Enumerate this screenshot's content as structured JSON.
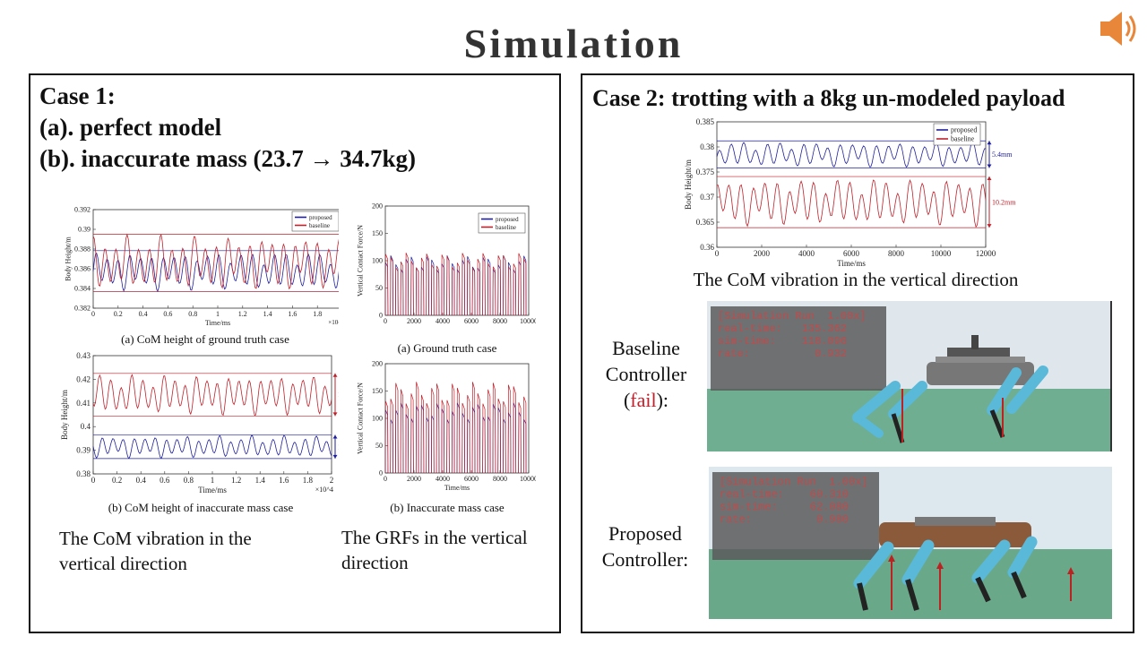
{
  "title": "Simulation",
  "left_panel": {
    "heading_lines": [
      "Case 1:",
      "(a). perfect model",
      "(b). inaccurate mass (23.7 → 34.7kg)"
    ],
    "captions": {
      "com_gt": "(a) CoM height of ground truth case",
      "grf_gt": "(a) Ground truth case",
      "com_mass": "(b) CoM height of inaccurate mass case",
      "grf_mass": "(b) Inaccurate mass case"
    },
    "text_com": [
      "The CoM vibration in the",
      "vertical direction"
    ],
    "text_grf": [
      "The GRFs in the vertical",
      "direction"
    ]
  },
  "right_panel": {
    "heading": "Case 2: trotting with a 8kg un-modeled payload",
    "caption": "The CoM vibration in the vertical direction",
    "baseline_label": [
      "Baseline",
      "Controller",
      "(",
      "fail",
      "):"
    ],
    "proposed_label": [
      "Proposed",
      "Controller:"
    ],
    "sim_baseline": {
      "hud": "[Simulation Run  1.00x]\nreal-time:   135.362\nsim-time:    118.096\nrate:          0.932"
    },
    "sim_proposed": {
      "hud": "[Simulation Run  1.00x]\nreal-time:    60.310\nsim-time:     62.080\nrate:          0.980"
    }
  },
  "colors": {
    "proposed": "#1f1f9e",
    "baseline": "#c0202a",
    "ground": "#6aa88a",
    "sky": "#dde7ee",
    "robot_leg": "#5ab8d8"
  },
  "chart_data": [
    {
      "id": "com_gt",
      "type": "line",
      "xlabel": "Time/ms",
      "ylabel": "Body Height/m",
      "x_exponent": "×10^4",
      "xlim": [
        0,
        2
      ],
      "ylim": [
        0.381,
        0.393
      ],
      "xticks": [
        "0",
        "0.2",
        "0.4",
        "0.6",
        "0.8",
        "1",
        "1.2",
        "1.4",
        "1.6",
        "1.8",
        "2"
      ],
      "yticks": [
        "0.382",
        "0.384",
        "0.386",
        "0.388",
        "0.39",
        "0.392"
      ],
      "series": [
        {
          "name": "proposed",
          "center": 0.3855,
          "amp": 0.0025
        },
        {
          "name": "baseline",
          "center": 0.3865,
          "amp": 0.0035
        }
      ],
      "annotations": [
        "8.7mm",
        "6.9mm"
      ]
    },
    {
      "id": "grf_gt",
      "type": "line",
      "xlabel": "",
      "ylabel": "Vertical Contact Force/N",
      "xlim": [
        0,
        10000
      ],
      "ylim": [
        0,
        210
      ],
      "xticks": [
        "0",
        "2000",
        "4000",
        "6000",
        "8000",
        "10000"
      ],
      "yticks": [
        "0",
        "50",
        "100",
        "150",
        "200"
      ],
      "series": [
        {
          "name": "proposed",
          "peak": 115
        },
        {
          "name": "baseline",
          "peak": 120
        }
      ]
    },
    {
      "id": "com_mass",
      "type": "line",
      "xlabel": "Time/ms",
      "ylabel": "Body Height/m",
      "x_exponent": "×10^4",
      "xlim": [
        0,
        2
      ],
      "ylim": [
        0.38,
        0.43
      ],
      "xticks": [
        "0",
        "0.2",
        "0.4",
        "0.6",
        "0.8",
        "1",
        "1.2",
        "1.4",
        "1.6",
        "1.8",
        "2"
      ],
      "yticks": [
        "0.38",
        "0.39",
        "0.4",
        "0.41",
        "0.42",
        "0.43"
      ],
      "series": [
        {
          "name": "proposed",
          "center": 0.3915,
          "amp": 0.005
        },
        {
          "name": "baseline",
          "center": 0.4135,
          "amp": 0.009
        }
      ],
      "annotations": [
        "18.6mm",
        "10.4mm"
      ]
    },
    {
      "id": "grf_mass",
      "type": "line",
      "xlabel": "Time/ms",
      "ylabel": "Vertical Contact Force/N",
      "xlim": [
        0,
        10000
      ],
      "ylim": [
        0,
        210
      ],
      "xticks": [
        "0",
        "2000",
        "4000",
        "6000",
        "8000",
        "10000"
      ],
      "yticks": [
        "0",
        "50",
        "100",
        "150",
        "200"
      ],
      "series": [
        {
          "name": "proposed",
          "peak": 135
        },
        {
          "name": "baseline",
          "peak": 175
        }
      ]
    },
    {
      "id": "com_case2",
      "type": "line",
      "xlabel": "Time/ms",
      "ylabel": "Body Height/m",
      "xlim": [
        0,
        12500
      ],
      "ylim": [
        0.36,
        0.385
      ],
      "xticks": [
        "0",
        "2000",
        "4000",
        "6000",
        "8000",
        "10000",
        "12000"
      ],
      "yticks": [
        "0.36",
        "0.365",
        "0.37",
        "0.375",
        "0.38",
        "0.385"
      ],
      "series": [
        {
          "name": "proposed",
          "center": 0.3785,
          "amp": 0.0027
        },
        {
          "name": "baseline",
          "center": 0.369,
          "amp": 0.0051
        }
      ],
      "annotations": [
        "5.4mm",
        "10.2mm"
      ]
    }
  ]
}
